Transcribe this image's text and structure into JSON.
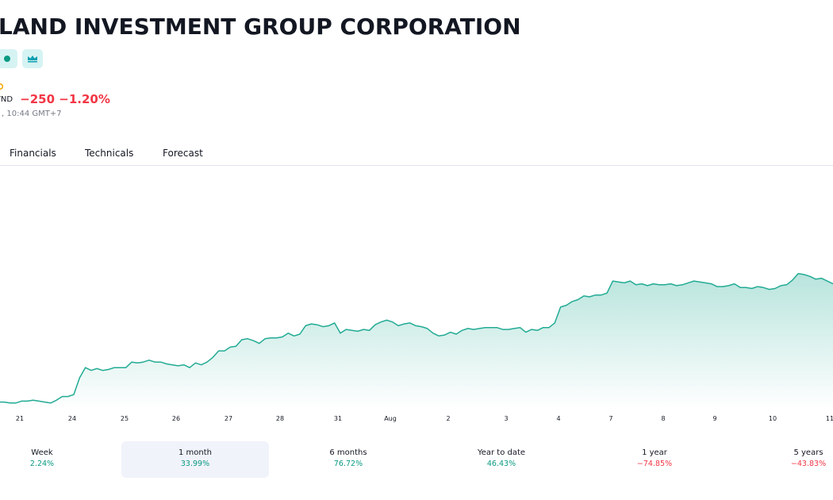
{
  "header": {
    "title": "LAND INVESTMENT GROUP CORPORATION",
    "badges": [
      "status-dot-icon",
      "crown-icon"
    ]
  },
  "quote": {
    "currency": "VND",
    "change": "−250",
    "change_percent": "−1.20%",
    "timestamp": ", 10:44 GMT+7"
  },
  "tabs": [
    "Financials",
    "Technicals",
    "Forecast"
  ],
  "chart_data": {
    "type": "area",
    "x_ticks": [
      "21",
      "24",
      "25",
      "26",
      "27",
      "28",
      "31",
      "Aug",
      "2",
      "3",
      "4",
      "7",
      "8",
      "9",
      "10",
      "11"
    ],
    "values": [
      20.8,
      20.8,
      20.7,
      20.7,
      20.9,
      20.9,
      21.0,
      20.9,
      20.8,
      20.7,
      21.0,
      21.4,
      21.4,
      21.6,
      23.4,
      24.5,
      24.2,
      24.4,
      24.2,
      24.3,
      24.5,
      24.5,
      24.5,
      25.1,
      25.0,
      25.1,
      25.3,
      25.1,
      25.1,
      24.9,
      24.8,
      24.7,
      24.8,
      24.5,
      25.0,
      24.8,
      25.1,
      25.6,
      26.3,
      26.3,
      26.7,
      26.8,
      27.5,
      27.6,
      27.4,
      27.1,
      27.6,
      27.7,
      27.7,
      27.8,
      28.2,
      27.9,
      28.1,
      29.0,
      29.2,
      29.1,
      28.9,
      29.0,
      29.3,
      28.2,
      28.6,
      28.5,
      28.4,
      28.6,
      28.5,
      29.1,
      29.4,
      29.6,
      29.4,
      29.0,
      29.2,
      29.3,
      29.0,
      28.9,
      28.7,
      28.2,
      27.9,
      28.0,
      28.3,
      28.1,
      28.5,
      28.7,
      28.6,
      28.7,
      28.8,
      28.8,
      28.8,
      28.6,
      28.6,
      28.7,
      28.8,
      28.3,
      28.6,
      28.5,
      28.8,
      28.8,
      29.3,
      31.0,
      31.2,
      31.6,
      31.8,
      32.2,
      32.1,
      32.3,
      32.3,
      32.5,
      33.8,
      33.7,
      33.6,
      33.8,
      33.4,
      33.5,
      33.3,
      33.5,
      33.4,
      33.4,
      33.5,
      33.3,
      33.4,
      33.6,
      33.8,
      33.7,
      33.6,
      33.5,
      33.2,
      33.2,
      33.3,
      33.5,
      33.1,
      33.1,
      33.0,
      33.2,
      33.1,
      32.9,
      33.0,
      33.3,
      33.4,
      33.9,
      34.6,
      34.5,
      34.3,
      34.0,
      34.1,
      33.8,
      33.5
    ],
    "line_color": "#22ab94",
    "fill_color": "#22ab94",
    "grid": false
  },
  "periods": [
    {
      "label": "Week",
      "value": "2.24%",
      "positive": true,
      "active": false
    },
    {
      "label": "1 month",
      "value": "33.99%",
      "positive": true,
      "active": true
    },
    {
      "label": "6 months",
      "value": "76.72%",
      "positive": true,
      "active": false
    },
    {
      "label": "Year to date",
      "value": "46.43%",
      "positive": true,
      "active": false
    },
    {
      "label": "1 year",
      "value": "−74.85%",
      "positive": false,
      "active": false
    },
    {
      "label": "5 years",
      "value": "−43.83%",
      "positive": false,
      "active": false
    }
  ]
}
